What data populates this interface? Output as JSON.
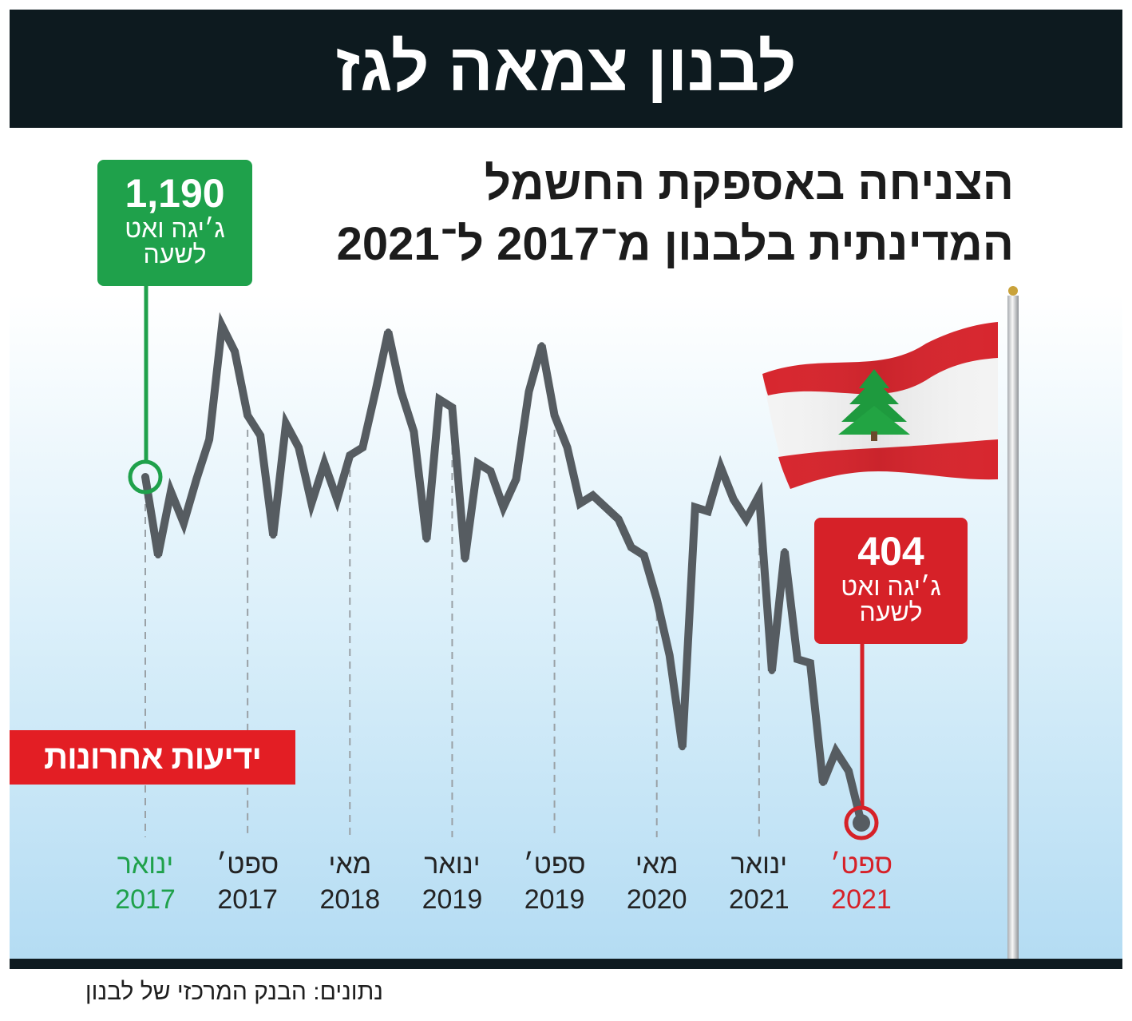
{
  "header": {
    "title": "לבנון צמאה לגז"
  },
  "subtitle": {
    "line1": "הצניחה באספקת החשמל",
    "line2": "המדינתית בלבנון מ־2017 ל־2021"
  },
  "start_callout": {
    "value": "1,190",
    "unit_line1": "ג׳יגה ואט",
    "unit_line2": "לשעה"
  },
  "end_callout": {
    "value": "404",
    "unit_line1": "ג׳יגה ואט",
    "unit_line2": "לשעה"
  },
  "logo": {
    "text": "ידיעות אחרונות"
  },
  "source": {
    "text": "נתונים: הבנק המרכזי של לבנון"
  },
  "colors": {
    "banner": "#0d1a1f",
    "start": "#1fa14b",
    "end": "#d62128",
    "line": "#565c61",
    "guide": "#9aa1a6",
    "flag_red": "#d7262e",
    "cedar": "#1e9a3e"
  },
  "flag": {
    "icon": "lebanon-flag-icon"
  },
  "chart_data": {
    "type": "line",
    "grid": false,
    "legend": "none",
    "x": [
      "2017-01",
      "2017-02",
      "2017-03",
      "2017-04",
      "2017-05",
      "2017-06",
      "2017-07",
      "2017-08",
      "2017-09",
      "2017-10",
      "2017-11",
      "2017-12",
      "2018-01",
      "2018-02",
      "2018-03",
      "2018-04",
      "2018-05",
      "2018-06",
      "2018-07",
      "2018-08",
      "2018-09",
      "2018-10",
      "2018-11",
      "2018-12",
      "2019-01",
      "2019-02",
      "2019-03",
      "2019-04",
      "2019-05",
      "2019-06",
      "2019-07",
      "2019-08",
      "2019-09",
      "2019-10",
      "2019-11",
      "2019-12",
      "2020-01",
      "2020-02",
      "2020-03",
      "2020-04",
      "2020-05",
      "2020-06",
      "2020-07",
      "2020-08",
      "2020-09",
      "2020-10",
      "2020-11",
      "2020-12",
      "2021-01",
      "2021-02",
      "2021-03",
      "2021-04",
      "2021-05",
      "2021-06",
      "2021-07",
      "2021-08",
      "2021-09"
    ],
    "values": [
      1190,
      1012,
      1157,
      1085,
      1185,
      1275,
      1533,
      1475,
      1330,
      1284,
      1057,
      1311,
      1257,
      1130,
      1221,
      1139,
      1239,
      1257,
      1384,
      1520,
      1384,
      1293,
      1048,
      1366,
      1348,
      1003,
      1221,
      1203,
      1121,
      1185,
      1384,
      1489,
      1330,
      1257,
      1130,
      1148,
      1121,
      1094,
      1030,
      1012,
      912,
      785,
      576,
      1121,
      1112,
      1212,
      1139,
      1094,
      1148,
      749,
      1021,
      776,
      767,
      495,
      567,
      522,
      404
    ],
    "x_ticks": [
      {
        "month": "ינואר",
        "year": "2017",
        "date": "2017-01"
      },
      {
        "month": "ספט׳",
        "year": "2017",
        "date": "2017-09"
      },
      {
        "month": "מאי",
        "year": "2018",
        "date": "2018-05"
      },
      {
        "month": "ינואר",
        "year": "2019",
        "date": "2019-01"
      },
      {
        "month": "ספט׳",
        "year": "2019",
        "date": "2019-09"
      },
      {
        "month": "מאי",
        "year": "2020",
        "date": "2020-05"
      },
      {
        "month": "ינואר",
        "year": "2021",
        "date": "2021-01"
      },
      {
        "month": "ספט׳",
        "year": "2021",
        "date": "2021-09"
      }
    ]
  }
}
